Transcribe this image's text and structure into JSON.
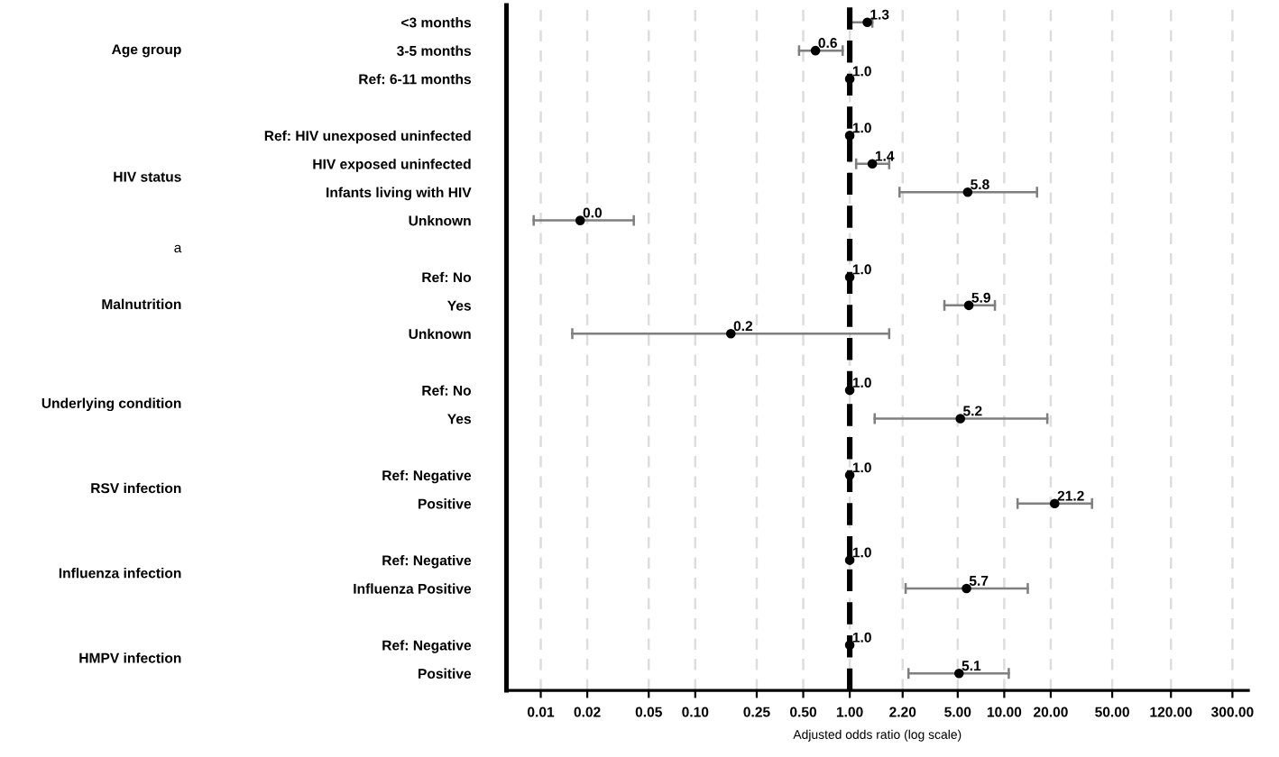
{
  "chart_data": {
    "type": "scatter",
    "orientation": "horizontal",
    "log": "x",
    "marker": "circle",
    "grid": "x",
    "legend": false,
    "xlabel": "Adjusted odds ratio (log scale)",
    "categories": [
      "<3 months",
      "3-5 months",
      "Ref: 6-11 months",
      null,
      "Ref: HIV unexposed uninfected",
      "HIV exposed uninfected",
      "Infants living with HIV",
      "Unknown",
      null,
      "Ref: No",
      "Yes",
      "Unknown",
      null,
      "Ref: No",
      "Yes",
      null,
      "Ref: Negative",
      "Positive",
      null,
      "Ref: Negative",
      "Influenza Positive",
      null,
      "Ref: Negative",
      "Positive"
    ],
    "series": [
      {
        "color": "#000000",
        "values": [
          1.3,
          0.6,
          1.0,
          null,
          1.0,
          1.4,
          5.8,
          0.018,
          null,
          1.0,
          5.9,
          0.17,
          null,
          1.0,
          5.2,
          null,
          1.0,
          21.2,
          null,
          1.0,
          5.7,
          null,
          1.0,
          5.1
        ],
        "errors": [
          [
            1.0,
            1.4
          ],
          [
            0.47,
            0.9
          ],
          null,
          null,
          null,
          [
            1.1,
            1.8
          ],
          [
            2.1,
            16.3
          ],
          [
            0.009,
            0.04
          ],
          null,
          null,
          [
            4.1,
            8.7
          ],
          [
            0.016,
            1.8
          ],
          null,
          null,
          [
            1.45,
            19
          ],
          null,
          null,
          [
            12.2,
            37
          ],
          null,
          null,
          [
            2.3,
            14.2
          ],
          null,
          null,
          [
            2.4,
            10.7
          ]
        ],
        "value_labels": [
          "1.3",
          "0.6",
          "1.0",
          null,
          "1.0",
          "1.4",
          "5.8",
          "0.0",
          null,
          "1.0",
          "5.9",
          "0.2",
          null,
          "1.0",
          "5.2",
          null,
          "1.0",
          "21.2",
          null,
          "1.0",
          "5.7",
          null,
          "1.0",
          "5.1"
        ]
      }
    ],
    "xlim": [
      0.006,
      380
    ],
    "xticks": [
      {
        "value": 0.01,
        "label": "0.01"
      },
      {
        "value": 0.02,
        "label": "0.02"
      },
      {
        "value": 0.05,
        "label": "0.05"
      },
      {
        "value": 0.1,
        "label": "0.10"
      },
      {
        "value": 0.25,
        "label": "0.25"
      },
      {
        "value": 0.5,
        "label": "0.50"
      },
      {
        "value": 1,
        "label": "1.00"
      },
      {
        "value": 2.2,
        "label": "2.20"
      },
      {
        "value": 5,
        "label": "5.00"
      },
      {
        "value": 10,
        "label": "10.00"
      },
      {
        "value": 20,
        "label": "20.00"
      },
      {
        "value": 50,
        "label": "50.00"
      },
      {
        "value": 120,
        "label": "120.00"
      },
      {
        "value": 300,
        "label": "300.00"
      }
    ],
    "ref_lines": [
      {
        "axis": "x",
        "value": 1,
        "color": "#000000",
        "line_style": "dashed"
      }
    ],
    "annotations": [
      "Age group",
      "HIV status",
      "Malnutrition",
      "Underlying condition",
      "RSV infection",
      "Influenza infection",
      "HMPV infection",
      "a"
    ]
  }
}
